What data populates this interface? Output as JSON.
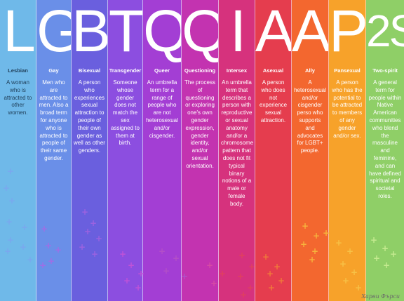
{
  "columns": [
    {
      "letter": "L",
      "word": "Lesbian",
      "desc": "A woman who is attracted to other women.",
      "bg": "#6fb9e9",
      "text": "#1f3e58",
      "width": 52,
      "plus": "#7aa8ee"
    },
    {
      "letter": "G",
      "word": "Gay",
      "desc": "Men who are attracted to men. Also a broad term for anyone who is attracted to people of their same gender.",
      "bg": "#6a8fe8",
      "text": "#ffffff",
      "width": 50,
      "plus": "#a06de6"
    },
    {
      "letter": "B",
      "word": "Bisexual",
      "desc": "A person who experiences sexual attraction to people of their own gender as well as other genders.",
      "bg": "#6a5fde",
      "text": "#ffffff",
      "width": 52,
      "plus": "#9c62e0"
    },
    {
      "letter": "T",
      "word": "Transgender",
      "desc": "Someone whose gender does not match the sex assigned to them at birth.",
      "bg": "#8c4ee0",
      "text": "#ffffff",
      "width": 50,
      "plus": "#c052d8"
    },
    {
      "letter": "Q",
      "word": "Queer",
      "desc": "An umbrella term for a range of people who are not heterosexual and/or cisgender.",
      "bg": "#a33ed4",
      "text": "#ffffff",
      "width": 55,
      "plus": "#b24fc8"
    },
    {
      "letter": "Q",
      "word": "Questioning",
      "desc": "The process of questioning or exploring one's own gender expression, gender identity, and/or sexual orientation.",
      "bg": "#c333b0",
      "text": "#ffffff",
      "width": 53,
      "plus": "#d64aa5"
    },
    {
      "letter": "I",
      "word": "Intersex",
      "desc": "An umbrella term that describes a person with reproductive or sexual anatomy and/or a chromosome pattern that does not fit typical binary notions of a male or female body.",
      "bg": "#d6327d",
      "text": "#ffffff",
      "width": 52,
      "plus": "#e0405e"
    },
    {
      "letter": "A",
      "word": "Asexual",
      "desc": "A person who does not experience sexual attraction.",
      "bg": "#e53d4e",
      "text": "#ffffff",
      "width": 52,
      "plus": "#f07a3a"
    },
    {
      "letter": "A",
      "word": "Ally",
      "desc": "A heterosexual and/or cisgender perso who supports and advocates for LGBT+ people.",
      "bg": "#f3672f",
      "text": "#ffffff",
      "width": 53,
      "plus": "#f6b23c"
    },
    {
      "letter": "P",
      "word": "Pansexual",
      "desc": "A person who has the potential to be attracted to members of any gender and/or sex.",
      "bg": "#f7a22a",
      "text": "#ffffff",
      "width": 53,
      "plus": "#f7c146"
    },
    {
      "letter": "2S",
      "word": "Two-spirit",
      "desc": "A general term for people within Native American communities who blend the masculine and feminine, and can have defined spiritual and societal roles.",
      "bg": "#8fcf67",
      "text": "#ffffff",
      "width": 54,
      "plus": "#c4ea8f"
    }
  ],
  "credit": "Харви Фърси",
  "plus_glyph": "+"
}
